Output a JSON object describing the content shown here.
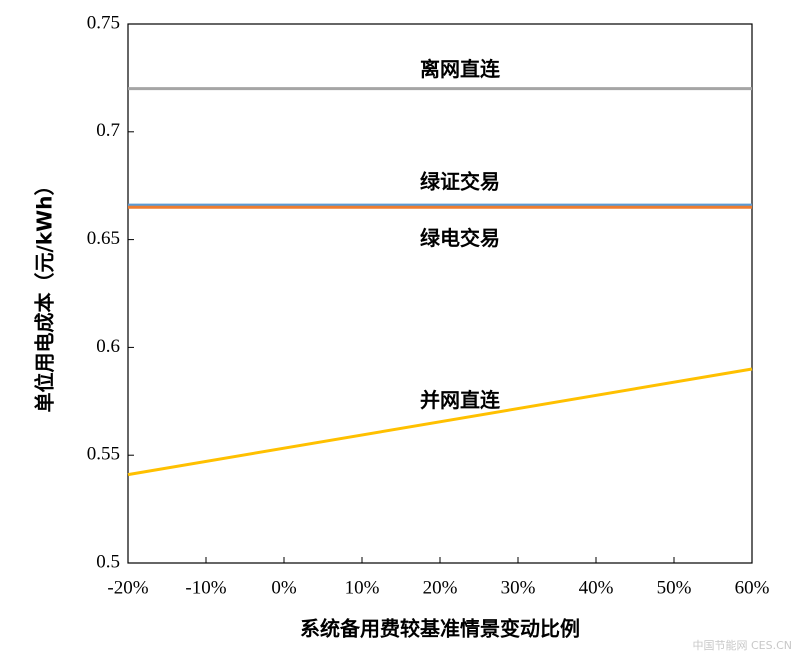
{
  "chart_data": {
    "type": "line",
    "x_label": "系统备用费较基准情景变动比例",
    "y_label": "单位用电成本（元/kWh）",
    "x": [
      -20,
      60
    ],
    "series": [
      {
        "name": "离网直连",
        "color": "#a5a5a5",
        "values": [
          0.72,
          0.72
        ]
      },
      {
        "name": "绿证交易",
        "color": "#5b9bd5",
        "values": [
          0.666,
          0.666
        ]
      },
      {
        "name": "绿电交易",
        "color": "#ed7d31",
        "values": [
          0.665,
          0.665
        ]
      },
      {
        "name": "并网直连",
        "color": "#ffc000",
        "values": [
          0.541,
          0.59
        ]
      }
    ],
    "xlim": [
      -20,
      60
    ],
    "xticks": [
      {
        "value": -20,
        "label": "-20%"
      },
      {
        "value": -10,
        "label": "-10%"
      },
      {
        "value": 0,
        "label": "0%"
      },
      {
        "value": 10,
        "label": "10%"
      },
      {
        "value": 20,
        "label": "20%"
      },
      {
        "value": 30,
        "label": "30%"
      },
      {
        "value": 40,
        "label": "40%"
      },
      {
        "value": 50,
        "label": "50%"
      },
      {
        "value": 60,
        "label": "60%"
      }
    ],
    "ylim": [
      0.5,
      0.75
    ],
    "yticks": [
      0.5,
      0.55,
      0.6,
      0.65,
      0.7,
      0.75
    ],
    "watermark": "中国节能网 CES.CN"
  }
}
